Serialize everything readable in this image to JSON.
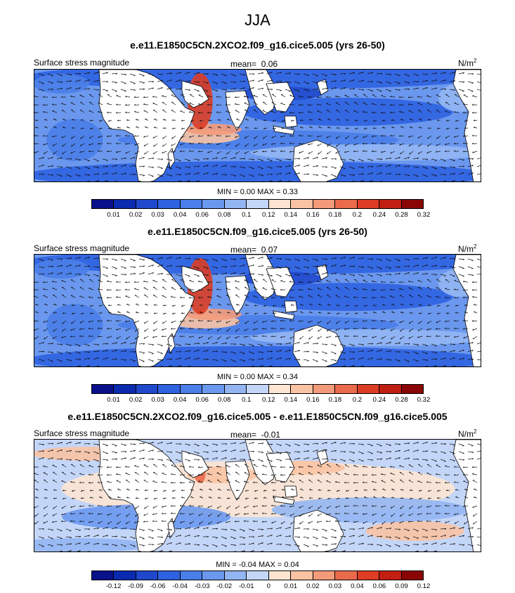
{
  "title": "JJA",
  "colors": {
    "seq": [
      "#08108a",
      "#0a2ab0",
      "#1f48cc",
      "#2f62e0",
      "#4a7ee8",
      "#6b98ee",
      "#93b6f3",
      "#c4d6f8",
      "#fde5d2",
      "#f9c3a4",
      "#f39a7a",
      "#ea6a4c",
      "#dc3d24",
      "#c01f12",
      "#8a0606"
    ],
    "diff": [
      "#08108a",
      "#0a2ab0",
      "#1f48cc",
      "#2f62e0",
      "#4a7ee8",
      "#6b98ee",
      "#93b6f3",
      "#c4d6f8",
      "#fde5d2",
      "#f9c3a4",
      "#f39a7a",
      "#ea6a4c",
      "#dc3d24",
      "#c01f12",
      "#8a0606"
    ],
    "land": "#ffffff"
  },
  "panels": [
    {
      "title": "e.e11.E1850C5CN.2XCO2.f09_g16.cice5.005 (yrs 26-50)",
      "left_label": "Surface stress magnitude",
      "mean_label": "mean=",
      "mean_value": "0.06",
      "unit": "N/m",
      "unit_sup": "2",
      "minmax": "MIN =  0.00 MAX =  0.33",
      "colorbar": "seq",
      "ticks": [
        "0.01",
        "0.02",
        "0.03",
        "0.04",
        "0.06",
        "0.08",
        "0.1",
        "0.12",
        "0.14",
        "0.16",
        "0.18",
        "0.2",
        "0.24",
        "0.28",
        "0.32"
      ]
    },
    {
      "title": "e.e11.E1850C5CN.f09_g16.cice5.005 (yrs 26-50)",
      "left_label": "Surface stress magnitude",
      "mean_label": "mean=",
      "mean_value": "0.07",
      "unit": "N/m",
      "unit_sup": "2",
      "minmax": "MIN =  0.00 MAX =  0.34",
      "colorbar": "seq",
      "ticks": [
        "0.01",
        "0.02",
        "0.03",
        "0.04",
        "0.06",
        "0.08",
        "0.1",
        "0.12",
        "0.14",
        "0.16",
        "0.18",
        "0.2",
        "0.24",
        "0.28",
        "0.32"
      ]
    },
    {
      "title": "e.e11.E1850C5CN.2XCO2.f09_g16.cice5.005 - e.e11.E1850C5CN.f09_g16.cice5.005",
      "left_label": "Surface stress magnitude",
      "mean_label": "mean=",
      "mean_value": "-0.01",
      "unit": "N/m",
      "unit_sup": "2",
      "minmax": "MIN = -0.04 MAX =  0.04",
      "colorbar": "diff",
      "ticks": [
        "-0.12",
        "-0.09",
        "-0.06",
        "-0.04",
        "-0.03",
        "-0.02",
        "-0.01",
        "0",
        "0.01",
        "0.02",
        "0.03",
        "0.04",
        "0.06",
        "0.09",
        "0.12"
      ]
    }
  ]
}
